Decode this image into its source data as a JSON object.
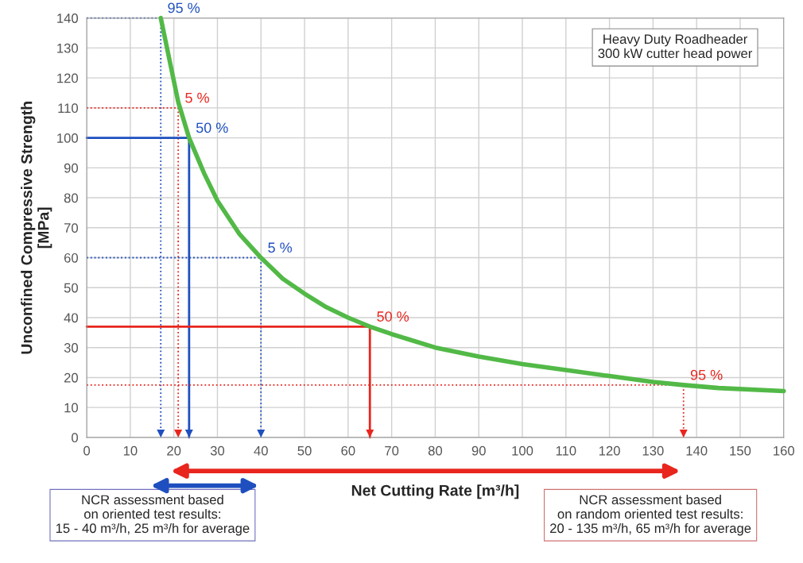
{
  "chart_data": {
    "type": "line",
    "xlabel": "Net Cutting Rate [m³/h]",
    "ylabel": "Unconfined Compressive Strength\n[MPa]",
    "xlim": [
      0,
      160
    ],
    "xticks": [
      0,
      10,
      20,
      30,
      40,
      50,
      60,
      70,
      80,
      90,
      100,
      110,
      120,
      130,
      140,
      150,
      160
    ],
    "ylim": [
      0,
      140
    ],
    "yticks": [
      0,
      10,
      20,
      30,
      40,
      50,
      60,
      70,
      80,
      90,
      100,
      110,
      120,
      130,
      140
    ],
    "grid": true,
    "series": [
      {
        "color": "#52b947",
        "x": [
          17,
          19,
          21,
          23.5,
          27,
          30,
          35,
          40,
          45,
          50,
          55,
          60,
          65,
          70,
          80,
          90,
          100,
          110,
          120,
          130,
          137,
          145,
          160
        ],
        "values": [
          140,
          126,
          112,
          100,
          88,
          79,
          68,
          60,
          53,
          48,
          43.5,
          40,
          37,
          34.5,
          30,
          27,
          24.5,
          22.5,
          20.5,
          18.5,
          17.5,
          16.5,
          15.5
        ],
        "line_style": "solid"
      },
      {
        "color": "#1f4fbf",
        "x": [
          0,
          17,
          17
        ],
        "values": [
          140,
          140,
          0
        ],
        "line_style": "dotted"
      },
      {
        "color": "#e8261e",
        "x": [
          0,
          21,
          21
        ],
        "values": [
          110,
          110,
          0
        ],
        "line_style": "dotted"
      },
      {
        "color": "#1f4fbf",
        "x": [
          0,
          23.5,
          23.5
        ],
        "values": [
          100,
          100,
          0
        ],
        "line_style": "solid"
      },
      {
        "color": "#1f4fbf",
        "x": [
          0,
          40,
          40
        ],
        "values": [
          60,
          60,
          0
        ],
        "line_style": "dotted"
      },
      {
        "color": "#e8261e",
        "x": [
          0,
          65,
          65
        ],
        "values": [
          37,
          37,
          0
        ],
        "line_style": "solid"
      },
      {
        "color": "#e8261e",
        "x": [
          0,
          137,
          137
        ],
        "values": [
          17.5,
          17.5,
          0
        ],
        "line_style": "dotted"
      }
    ],
    "annotations": [
      {
        "text": "95 %",
        "x": 17,
        "y": 140
      },
      {
        "text": "5 %",
        "x": 21,
        "y": 110
      },
      {
        "text": "50 %",
        "x": 23.5,
        "y": 100
      },
      {
        "text": "5 %",
        "x": 40,
        "y": 60
      },
      {
        "text": "50 %",
        "x": 65,
        "y": 37
      },
      {
        "text": "95 %",
        "x": 137,
        "y": 17.5
      },
      "Heavy Duty Roadheader\n300 kW cutter head power",
      "NCR assessment based\non oriented test results:\n15 - 40 m³/h, 25 m³/h for average",
      "NCR assessment based\non random oriented test results:\n20 - 135 m³/h, 65 m³/h for average"
    ]
  }
}
